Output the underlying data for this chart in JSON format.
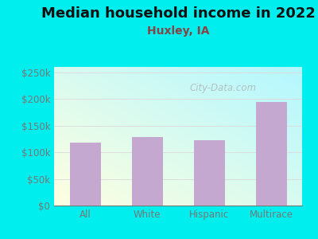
{
  "title": "Median household income in 2022",
  "subtitle": "Huxley, IA",
  "categories": [
    "All",
    "White",
    "Hispanic",
    "Multirace"
  ],
  "values": [
    118000,
    128000,
    122000,
    195000
  ],
  "bar_color": "#c4a8d0",
  "title_fontsize": 13,
  "subtitle_fontsize": 10,
  "subtitle_color": "#884444",
  "background_color": "#00eeee",
  "yticks": [
    0,
    50000,
    100000,
    150000,
    200000,
    250000
  ],
  "ytick_labels": [
    "$0",
    "$50k",
    "$100k",
    "$150k",
    "$200k",
    "$250k"
  ],
  "ylim": [
    0,
    260000
  ],
  "watermark": "City-Data.com",
  "tick_color": "#777777",
  "grid_color": "#dddddd"
}
